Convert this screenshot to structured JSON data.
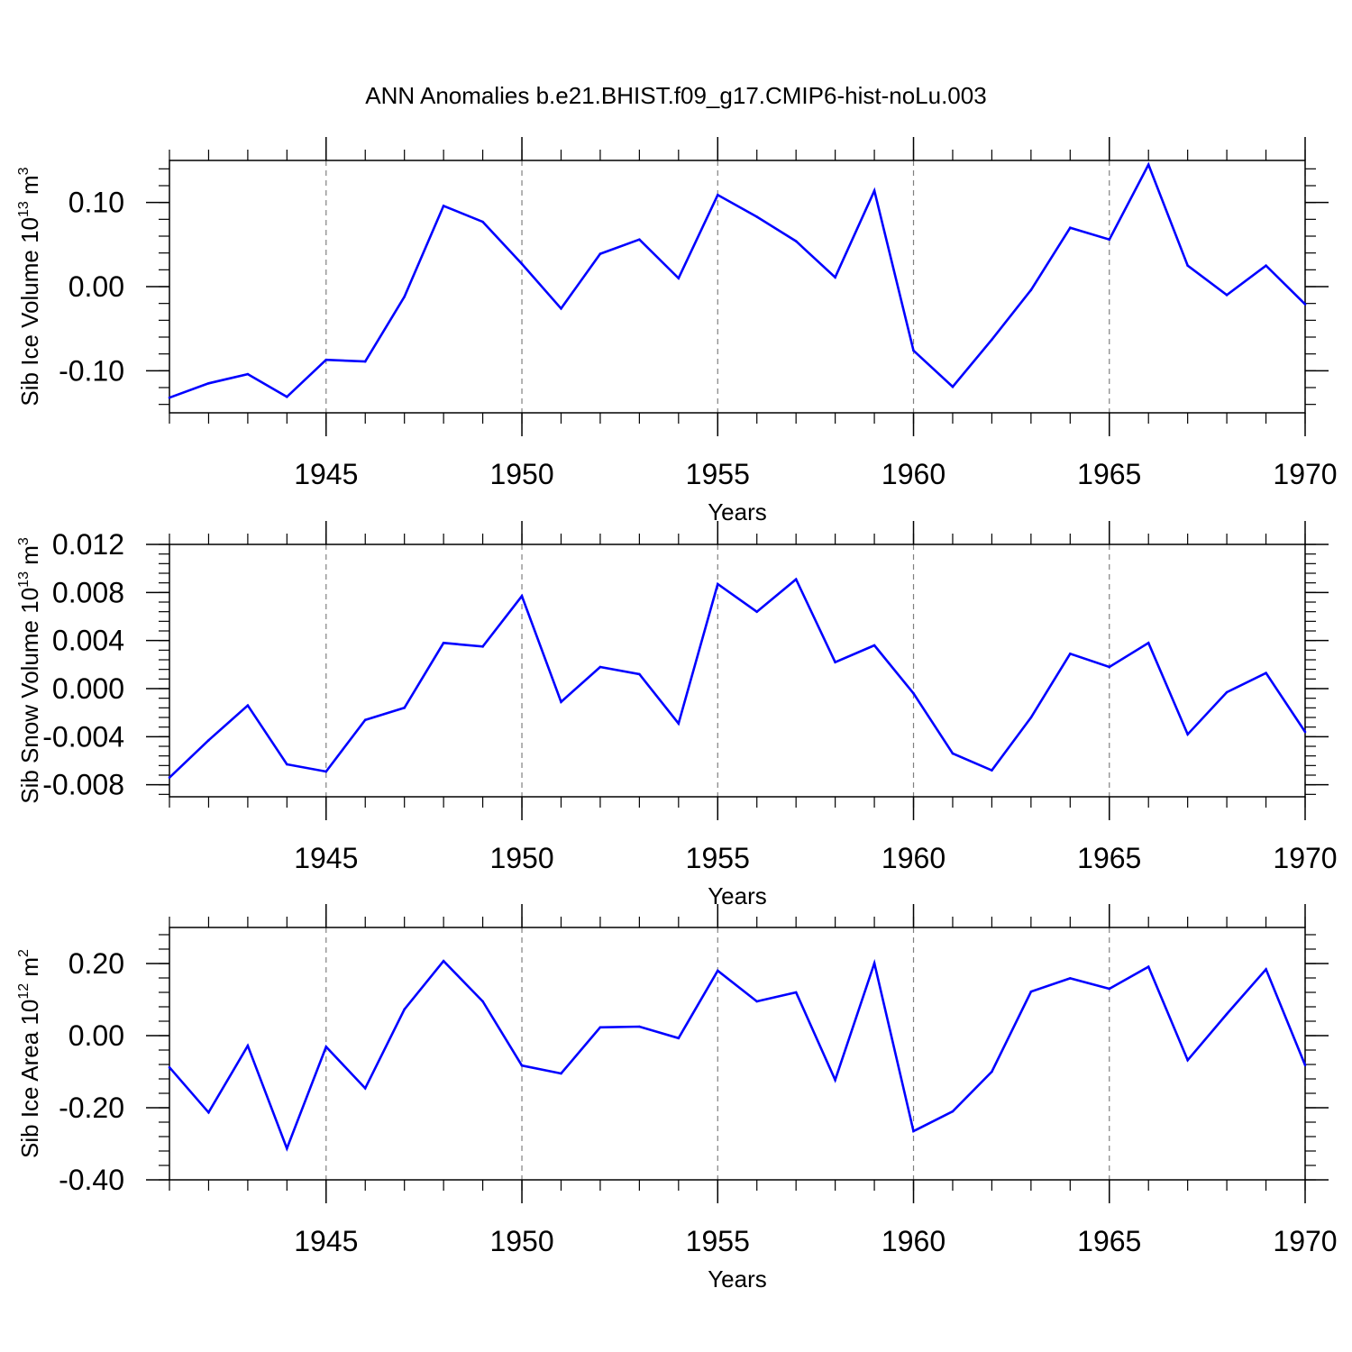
{
  "title": "ANN Anomalies b.e21.BHIST.f09_g17.CMIP6-hist-noLu.003",
  "line_color": "#0000ff",
  "chart_data": [
    {
      "type": "line",
      "ylabel": {
        "text": "Sib Ice Volume 10",
        "exp": "13",
        "unit": " m",
        "unit_exp": "3"
      },
      "xlabel": "Years",
      "xlim": [
        1941,
        1970
      ],
      "ylim": [
        -0.15,
        0.15
      ],
      "x_ticks": [
        1945,
        1950,
        1955,
        1960,
        1965,
        1970
      ],
      "y_ticks": [
        -0.1,
        0.0,
        0.1
      ],
      "y_tick_labels": [
        "-0.10",
        "0.00",
        "0.10"
      ],
      "x": [
        1941,
        1942,
        1943,
        1944,
        1945,
        1946,
        1947,
        1948,
        1949,
        1950,
        1951,
        1952,
        1953,
        1954,
        1955,
        1956,
        1957,
        1958,
        1959,
        1960,
        1961,
        1962,
        1963,
        1964,
        1965,
        1966,
        1967,
        1968,
        1969,
        1970
      ],
      "values": [
        -0.132,
        -0.115,
        -0.104,
        -0.131,
        -0.087,
        -0.089,
        -0.012,
        0.096,
        0.077,
        0.027,
        -0.026,
        0.039,
        0.056,
        0.01,
        0.109,
        0.083,
        0.054,
        0.011,
        0.114,
        -0.076,
        -0.119,
        -0.063,
        -0.004,
        0.07,
        0.056,
        0.145,
        0.025,
        -0.01,
        0.025,
        -0.021
      ]
    },
    {
      "type": "line",
      "ylabel": {
        "text": "Sib Snow Volume 10",
        "exp": "13",
        "unit": " m",
        "unit_exp": "3"
      },
      "xlabel": "Years",
      "xlim": [
        1941,
        1970
      ],
      "ylim": [
        -0.009,
        0.012
      ],
      "x_ticks": [
        1945,
        1950,
        1955,
        1960,
        1965,
        1970
      ],
      "y_ticks": [
        -0.008,
        -0.004,
        0.0,
        0.004,
        0.008,
        0.012
      ],
      "y_tick_labels": [
        "-0.008",
        "-0.004",
        "0.000",
        "0.004",
        "0.008",
        "0.012"
      ],
      "x": [
        1941,
        1942,
        1943,
        1944,
        1945,
        1946,
        1947,
        1948,
        1949,
        1950,
        1951,
        1952,
        1953,
        1954,
        1955,
        1956,
        1957,
        1958,
        1959,
        1960,
        1961,
        1962,
        1963,
        1964,
        1965,
        1966,
        1967,
        1968,
        1969,
        1970
      ],
      "values": [
        -0.0074,
        -0.0043,
        -0.0014,
        -0.0063,
        -0.0069,
        -0.0026,
        -0.0016,
        0.0038,
        0.0035,
        0.0077,
        -0.0011,
        0.0018,
        0.0012,
        -0.0029,
        0.0087,
        0.0064,
        0.0091,
        0.0022,
        0.0036,
        -0.0004,
        -0.0054,
        -0.0068,
        -0.0024,
        0.0029,
        0.0018,
        0.0038,
        -0.0038,
        -0.0003,
        0.0013,
        -0.0036
      ]
    },
    {
      "type": "line",
      "ylabel": {
        "text": "Sib Ice Area 10",
        "exp": "12",
        "unit": " m",
        "unit_exp": "2"
      },
      "xlabel": "Years",
      "xlim": [
        1941,
        1970
      ],
      "ylim": [
        -0.4,
        0.3
      ],
      "x_ticks": [
        1945,
        1950,
        1955,
        1960,
        1965,
        1970
      ],
      "y_ticks": [
        -0.4,
        -0.2,
        0.0,
        0.2
      ],
      "y_tick_labels": [
        "-0.40",
        "-0.20",
        "0.00",
        "0.20"
      ],
      "x": [
        1941,
        1942,
        1943,
        1944,
        1945,
        1946,
        1947,
        1948,
        1949,
        1950,
        1951,
        1952,
        1953,
        1954,
        1955,
        1956,
        1957,
        1958,
        1959,
        1960,
        1961,
        1962,
        1963,
        1964,
        1965,
        1966,
        1967,
        1968,
        1969,
        1970
      ],
      "values": [
        -0.088,
        -0.213,
        -0.028,
        -0.313,
        -0.031,
        -0.146,
        0.073,
        0.207,
        0.095,
        -0.083,
        -0.105,
        0.023,
        0.025,
        -0.007,
        0.18,
        0.095,
        0.12,
        -0.123,
        0.201,
        -0.265,
        -0.21,
        -0.1,
        0.122,
        0.159,
        0.13,
        0.191,
        -0.068,
        0.06,
        0.184,
        -0.082
      ]
    }
  ]
}
